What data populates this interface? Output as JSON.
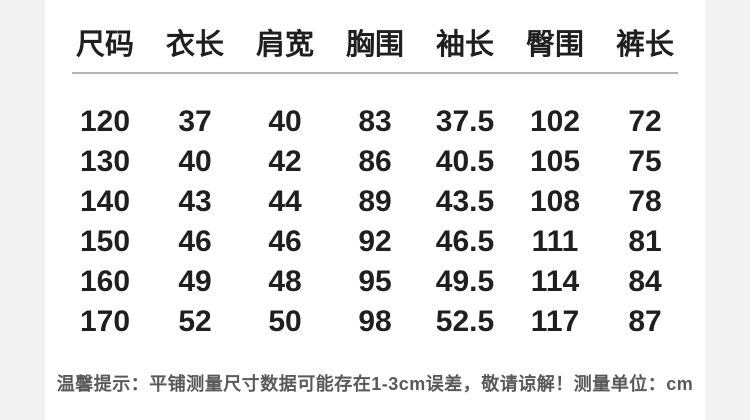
{
  "table": {
    "columns": [
      "尺码",
      "衣长",
      "肩宽",
      "胸围",
      "袖长",
      "臀围",
      "裤长"
    ],
    "rows": [
      [
        "120",
        "37",
        "40",
        "83",
        "37.5",
        "102",
        "72"
      ],
      [
        "130",
        "40",
        "42",
        "86",
        "40.5",
        "105",
        "75"
      ],
      [
        "140",
        "43",
        "44",
        "89",
        "43.5",
        "108",
        "78"
      ],
      [
        "150",
        "46",
        "46",
        "92",
        "46.5",
        "111",
        "81"
      ],
      [
        "160",
        "49",
        "48",
        "95",
        "49.5",
        "114",
        "84"
      ],
      [
        "170",
        "52",
        "50",
        "98",
        "52.5",
        "117",
        "87"
      ]
    ]
  },
  "note": "温馨提示：平铺测量尺寸数据可能存在1-3cm误差，敬请谅解！测量单位：cm",
  "colors": {
    "background": "#f2f2f2",
    "panel": "#ffffff",
    "text": "#1f1f1f",
    "divider": "#b3b3b3",
    "note_text": "#595959"
  },
  "chart_data": {
    "type": "table",
    "title": "",
    "columns": [
      "尺码",
      "衣长",
      "肩宽",
      "胸围",
      "袖长",
      "臀围",
      "裤长"
    ],
    "rows": [
      [
        "120",
        "37",
        "40",
        "83",
        "37.5",
        "102",
        "72"
      ],
      [
        "130",
        "40",
        "42",
        "86",
        "40.5",
        "105",
        "75"
      ],
      [
        "140",
        "43",
        "44",
        "89",
        "43.5",
        "108",
        "78"
      ],
      [
        "150",
        "46",
        "46",
        "92",
        "46.5",
        "111",
        "81"
      ],
      [
        "160",
        "49",
        "48",
        "95",
        "49.5",
        "114",
        "84"
      ],
      [
        "170",
        "52",
        "50",
        "98",
        "52.5",
        "117",
        "87"
      ]
    ],
    "unit": "cm",
    "note": "温馨提示：平铺测量尺寸数据可能存在1-3cm误差，敬请谅解！测量单位：cm"
  }
}
